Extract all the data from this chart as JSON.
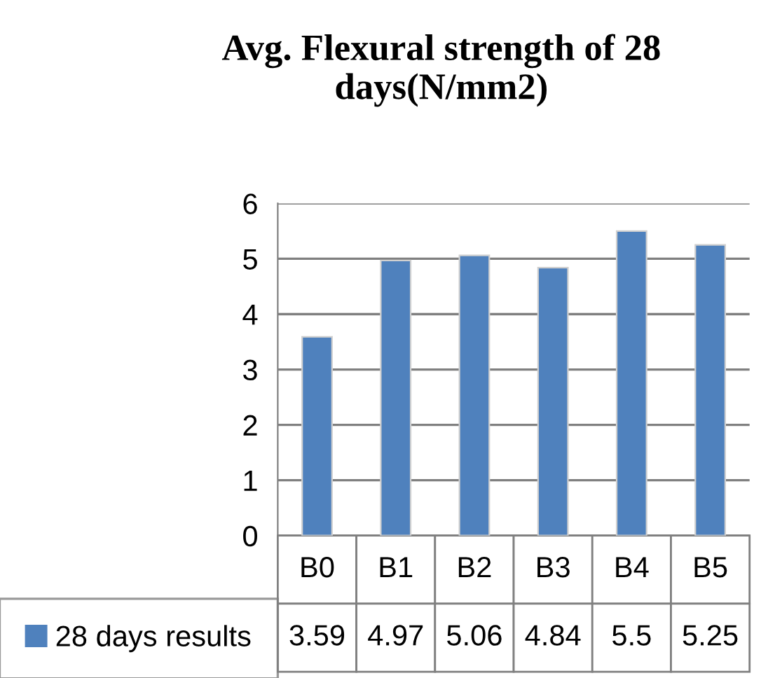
{
  "chart_data": {
    "type": "bar",
    "title": "Avg. Flexural strength of 28 days(N/mm2)",
    "categories": [
      "B0",
      "B1",
      "B2",
      "B3",
      "B4",
      "B5"
    ],
    "series": [
      {
        "name": "28 days results",
        "color": "#4f81bd",
        "values": [
          3.59,
          4.97,
          5.06,
          4.84,
          5.5,
          5.25
        ]
      }
    ],
    "ylim": [
      0,
      6
    ],
    "yticks": [
      0,
      1,
      2,
      3,
      4,
      5,
      6
    ],
    "grid": "y",
    "data_labels": true,
    "legend": "bottom left"
  }
}
